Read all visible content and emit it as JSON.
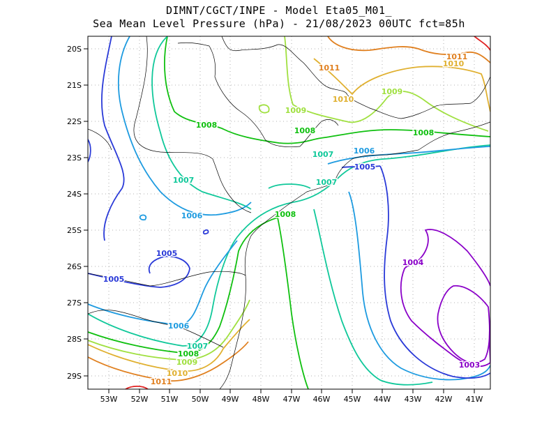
{
  "header": {
    "line1": "DIMNT/CGCT/INPE -  Model Eta05_M01_",
    "line2": "Sea Mean Level Pressure (hPa) - 21/08/2023 00UTC fct=85h"
  },
  "axes": {
    "lat_labels": [
      "20S",
      "21S",
      "22S",
      "23S",
      "24S",
      "25S",
      "26S",
      "27S",
      "28S",
      "29S"
    ],
    "lon_labels": [
      "53W",
      "52W",
      "51W",
      "50W",
      "49W",
      "48W",
      "47W",
      "46W",
      "45W",
      "44W",
      "43W",
      "42W",
      "41W"
    ]
  },
  "colors": {
    "c1003": "#8a00c8",
    "c1004": "#8a00c8",
    "c1005": "#2a3ad8",
    "c1006": "#1e9be0",
    "c1007": "#10c89a",
    "c1008": "#10c010",
    "c1009": "#a0e040",
    "c1010": "#e0b030",
    "c1011": "#e08020",
    "c1012": "#e02020",
    "coast": "#000000",
    "grid": "#999999"
  },
  "contour_labels": [
    {
      "text": "1011",
      "color": "c1011"
    },
    {
      "text": "1010",
      "color": "c1010"
    },
    {
      "text": "1011",
      "color": "c1011"
    },
    {
      "text": "1010",
      "color": "c1010"
    },
    {
      "text": "1009",
      "color": "c1009"
    },
    {
      "text": "1009",
      "color": "c1009"
    },
    {
      "text": "1008",
      "color": "c1008"
    },
    {
      "text": "1008",
      "color": "c1008"
    },
    {
      "text": "1008",
      "color": "c1008"
    },
    {
      "text": "1007",
      "color": "c1007"
    },
    {
      "text": "1006",
      "color": "c1006"
    },
    {
      "text": "1005",
      "color": "c1005"
    },
    {
      "text": "1007",
      "color": "c1007"
    },
    {
      "text": "1007",
      "color": "c1007"
    },
    {
      "text": "1008",
      "color": "c1008"
    },
    {
      "text": "1006",
      "color": "c1006"
    },
    {
      "text": "1005",
      "color": "c1005"
    },
    {
      "text": "1005",
      "color": "c1005"
    },
    {
      "text": "1004",
      "color": "c1004"
    },
    {
      "text": "1006",
      "color": "c1006"
    },
    {
      "text": "1007",
      "color": "c1007"
    },
    {
      "text": "1008",
      "color": "c1008"
    },
    {
      "text": "1009",
      "color": "c1009"
    },
    {
      "text": "1010",
      "color": "c1010"
    },
    {
      "text": "1011",
      "color": "c1011"
    },
    {
      "text": "1003",
      "color": "c1003"
    }
  ]
}
